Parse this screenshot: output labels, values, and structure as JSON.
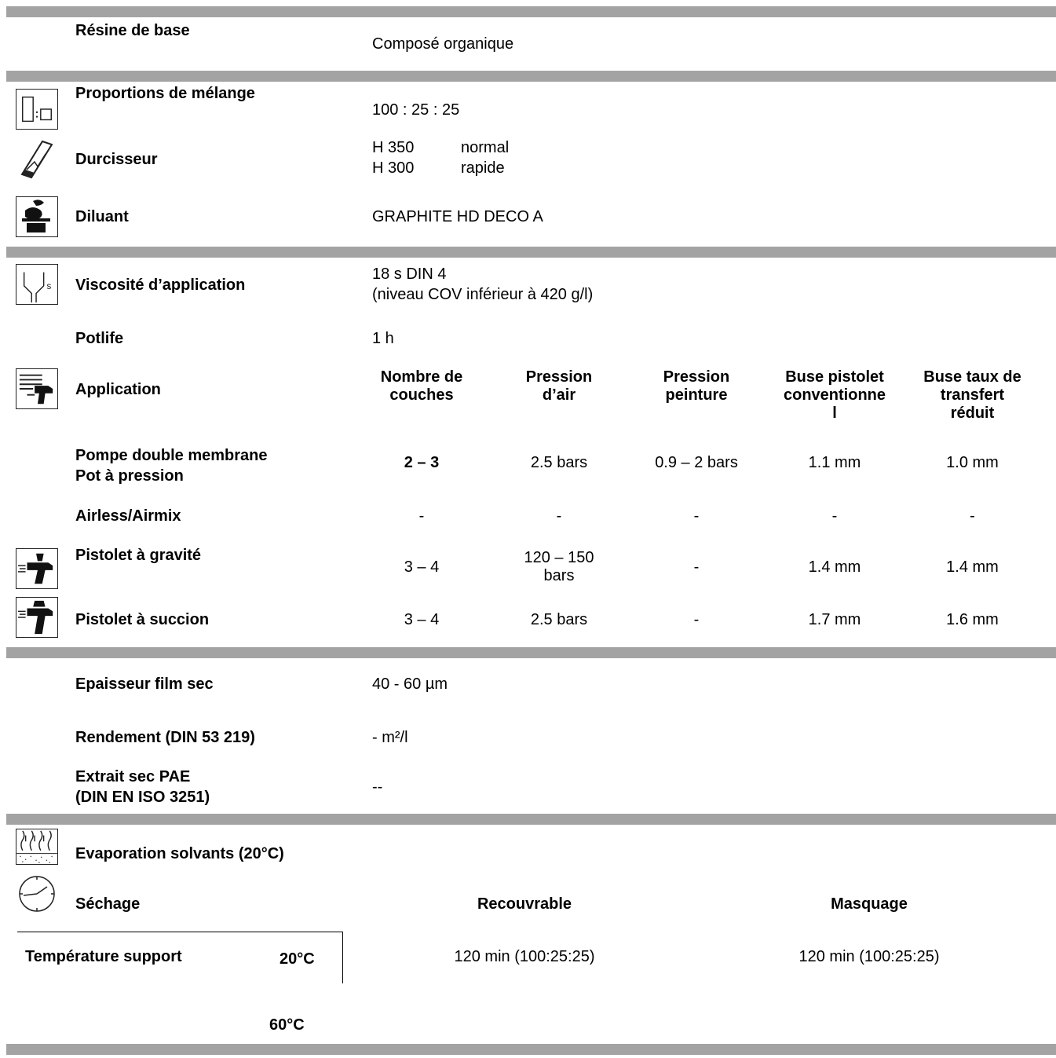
{
  "resine": {
    "label": "Résine de base",
    "value": "Composé organique"
  },
  "proportions": {
    "label": "Proportions de mélange",
    "value": "100 : 25 : 25"
  },
  "durcisseur": {
    "label": "Durcisseur",
    "items": [
      {
        "code": "H 350",
        "desc": "normal"
      },
      {
        "code": "H 300",
        "desc": "rapide"
      }
    ]
  },
  "diluant": {
    "label": "Diluant",
    "value": "GRAPHITE HD DECO A"
  },
  "viscosite": {
    "label": "Viscosité d’application",
    "line1": "18 s DIN 4",
    "line2": "(niveau COV inférieur à 420 g/l)"
  },
  "potlife": {
    "label": "Potlife",
    "value": "1 h"
  },
  "application": {
    "label": "Application",
    "headers": [
      {
        "l1": "Nombre de",
        "l2": "couches",
        "l3": ""
      },
      {
        "l1": "Pression",
        "l2": "d’air",
        "l3": ""
      },
      {
        "l1": "Pression",
        "l2": "peinture",
        "l3": ""
      },
      {
        "l1": "Buse pistolet",
        "l2": "conventionne",
        "l3": "l"
      },
      {
        "l1": "Buse taux de",
        "l2": "transfert",
        "l3": "réduit"
      }
    ],
    "rows": [
      {
        "label1": "Pompe double membrane",
        "label2": "Pot à pression",
        "cells": [
          "2 – 3",
          "2.5 bars",
          "0.9 – 2 bars",
          "1.1 mm",
          "1.0 mm"
        ]
      },
      {
        "label1": "Airless/Airmix",
        "label2": "",
        "cells": [
          "-",
          "-",
          "-",
          "-",
          "-"
        ]
      },
      {
        "label1": "Pistolet à gravité",
        "label2": "",
        "cells": [
          "3 – 4",
          "120 – 150",
          "-",
          "1.4 mm",
          "1.4 mm"
        ],
        "cell2_line2": "bars"
      },
      {
        "label1": "Pistolet à succion",
        "label2": "",
        "cells": [
          "3 – 4",
          "2.5 bars",
          "-",
          "1.7 mm",
          "1.6 mm"
        ]
      }
    ]
  },
  "epaisseur": {
    "label": "Epaisseur film sec",
    "value": "40 - 60 µm"
  },
  "rendement": {
    "label": "Rendement (DIN 53 219)",
    "value": "- m²/l"
  },
  "extrait": {
    "label1": "Extrait sec PAE",
    "label2": "(DIN EN ISO 3251)",
    "value": "--"
  },
  "evaporation": {
    "label": "Evaporation solvants (20°C)"
  },
  "sechage": {
    "label": "Séchage",
    "col1": "Recouvrable",
    "col2": "Masquage"
  },
  "temperature": {
    "label": "Température support",
    "t1": "20°C",
    "t1_v1": "120 min (100:25:25)",
    "t1_v2": "120 min (100:25:25)",
    "t2": "60°C"
  },
  "icons": [
    "mix-ratio-icon",
    "hardener-icon",
    "thinner-icon",
    "viscosity-cup-icon",
    "spray-application-icon",
    "gravity-gun-icon",
    "suction-gun-icon",
    "evaporation-icon",
    "clock-icon"
  ],
  "colors": {
    "separator": "#a3a3a3"
  }
}
